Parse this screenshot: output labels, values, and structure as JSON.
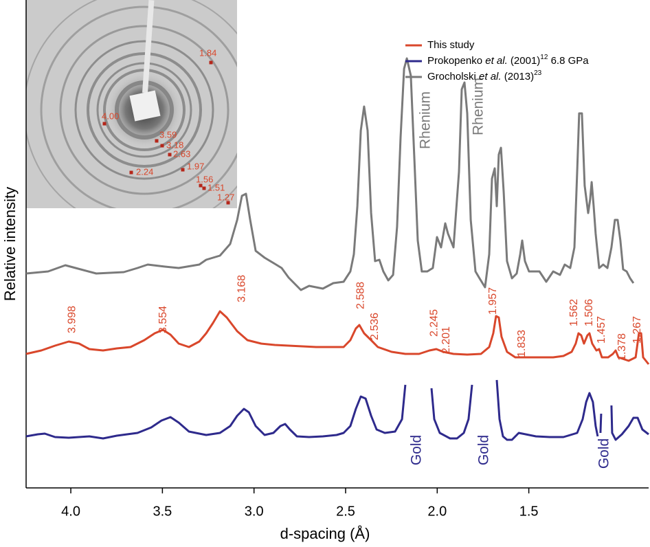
{
  "chart_data": {
    "type": "line",
    "xlabel": "d-spacing (Å)",
    "ylabel": "Relative intensity",
    "xlim": [
      4.244,
      0.846
    ],
    "ylim": [
      0,
      710
    ],
    "xticks": [
      {
        "value": 4,
        "label": "4.0"
      },
      3.5,
      {
        "value": 3,
        "label": "3.0"
      },
      2.5,
      {
        "value": 2,
        "label": "2.0"
      },
      1.5
    ],
    "legend": "upper right",
    "series": [
      {
        "name": [
          {
            "text": "This study"
          }
        ],
        "color": "#d9472b",
        "x": [
          4.244,
          4.161,
          4.086,
          4.011,
          3.955,
          3.899,
          3.824,
          3.749,
          3.674,
          3.599,
          3.542,
          3.497,
          3.456,
          3.411,
          3.355,
          3.299,
          3.261,
          3.224,
          3.186,
          3.149,
          3.092,
          3.036,
          2.961,
          2.886,
          2.811,
          2.736,
          2.661,
          2.586,
          2.511,
          2.474,
          2.444,
          2.425,
          2.399,
          2.361,
          2.324,
          2.249,
          2.174,
          2.099,
          2.042,
          2.005,
          1.967,
          1.911,
          1.836,
          1.761,
          1.716,
          1.694,
          1.679,
          1.664,
          1.649,
          1.619,
          1.574,
          1.499,
          1.424,
          1.367,
          1.311,
          1.266,
          1.244,
          1.229,
          1.214,
          1.199,
          1.18,
          1.169,
          1.154,
          1.131,
          1.116,
          1.101,
          1.067,
          1.041,
          1.026,
          1.011,
          0.955,
          0.917,
          0.899,
          0.887,
          0.876,
          0.846
        ],
        "values": [
          195,
          200,
          207,
          213,
          210,
          202,
          200,
          203,
          205,
          215,
          225,
          230,
          223,
          210,
          205,
          213,
          225,
          240,
          257,
          248,
          228,
          215,
          210,
          208,
          207,
          206,
          205,
          205,
          205,
          215,
          232,
          237,
          225,
          215,
          205,
          198,
          195,
          195,
          200,
          202,
          198,
          195,
          194,
          195,
          205,
          225,
          250,
          248,
          220,
          198,
          190,
          190,
          190,
          190,
          192,
          198,
          210,
          225,
          222,
          210,
          222,
          225,
          210,
          200,
          202,
          190,
          190,
          195,
          200,
          190,
          185,
          190,
          225,
          225,
          190,
          180
        ]
      },
      {
        "name": [
          {
            "text": "Prokopenko "
          },
          {
            "text": "et al.",
            "style": "italic"
          },
          {
            "text": " (2001)"
          },
          {
            "text": "12",
            "style": "super"
          },
          {
            "text": " 6.8 GPa"
          }
        ],
        "color": "#2e2a8c",
        "x": [
          4.244,
          4.18,
          4.142,
          4.086,
          4.011,
          3.899,
          3.824,
          3.749,
          3.636,
          3.561,
          3.505,
          3.456,
          3.411,
          3.355,
          3.261,
          3.186,
          3.13,
          3.092,
          3.055,
          3.028,
          2.991,
          2.942,
          2.894,
          2.856,
          2.83,
          2.804,
          2.766,
          2.699,
          2.624,
          2.549,
          2.511,
          2.474,
          2.444,
          2.417,
          2.391,
          2.361,
          2.331,
          2.286,
          2.23,
          2.192,
          2.174,
          null,
          2.031,
          2.016,
          1.986,
          1.93,
          1.892,
          1.855,
          1.829,
          1.81,
          null,
          1.675,
          1.66,
          1.641,
          1.619,
          1.592,
          1.555,
          1.517,
          1.461,
          1.386,
          1.311,
          1.236,
          1.206,
          1.187,
          1.169,
          1.15,
          1.135,
          1.124,
          null,
          1.109,
          1.105,
          null,
          1.049,
          1.045,
          1.026,
          0.992,
          0.955,
          0.929,
          0.906,
          0.88,
          0.846
        ],
        "values": [
          75,
          78,
          79,
          74,
          73,
          75,
          72,
          76,
          80,
          88,
          98,
          103,
          95,
          82,
          77,
          80,
          90,
          105,
          115,
          110,
          90,
          77,
          80,
          90,
          93,
          85,
          75,
          74,
          75,
          77,
          80,
          90,
          115,
          133,
          130,
          105,
          85,
          80,
          82,
          100,
          150,
          null,
          145,
          100,
          80,
          72,
          72,
          80,
          100,
          150,
          null,
          157,
          100,
          75,
          70,
          70,
          80,
          78,
          75,
          74,
          74,
          80,
          100,
          125,
          138,
          125,
          90,
          75,
          null,
          80,
          108,
          null,
          120,
          80,
          70,
          78,
          90,
          102,
          102,
          85,
          78
        ]
      },
      {
        "name": [
          {
            "text": "Grocholski "
          },
          {
            "text": "et al.",
            "style": "italic"
          },
          {
            "text": " (2013)"
          },
          {
            "text": "23",
            "style": "super"
          }
        ],
        "color": "#7a7a7a",
        "x": [
          4.244,
          4.124,
          4.03,
          3.974,
          3.861,
          3.711,
          3.636,
          3.58,
          3.486,
          3.411,
          3.299,
          3.261,
          3.186,
          3.13,
          3.092,
          3.066,
          3.044,
          3.021,
          2.991,
          2.942,
          2.886,
          2.849,
          2.811,
          2.744,
          2.699,
          2.624,
          2.567,
          2.511,
          2.474,
          2.455,
          2.436,
          2.417,
          2.399,
          2.38,
          2.361,
          2.339,
          2.316,
          2.294,
          2.267,
          2.241,
          2.219,
          2.2,
          2.181,
          2.166,
          2.144,
          2.125,
          2.106,
          2.084,
          2.054,
          2.024,
          2.001,
          1.979,
          1.956,
          1.941,
          1.911,
          1.881,
          1.866,
          1.851,
          1.836,
          1.817,
          1.791,
          1.769,
          1.739,
          1.716,
          1.701,
          1.686,
          1.675,
          1.664,
          1.652,
          1.637,
          1.619,
          1.592,
          1.566,
          1.547,
          1.536,
          1.521,
          1.499,
          1.442,
          1.405,
          1.367,
          1.33,
          1.304,
          1.274,
          1.251,
          1.236,
          1.225,
          1.21,
          1.195,
          1.176,
          1.165,
          1.157,
          1.146,
          1.135,
          1.116,
          1.094,
          1.071,
          1.049,
          1.03,
          1.015,
          1.0,
          0.985,
          0.966,
          0.947,
          0.929
        ],
        "values": [
          312,
          315,
          324,
          320,
          312,
          314,
          320,
          325,
          322,
          320,
          325,
          332,
          338,
          355,
          390,
          425,
          428,
          390,
          345,
          335,
          326,
          320,
          306,
          288,
          294,
          290,
          298,
          300,
          315,
          340,
          410,
          520,
          555,
          520,
          400,
          330,
          332,
          315,
          302,
          310,
          380,
          510,
          610,
          625,
          600,
          480,
          360,
          315,
          315,
          320,
          365,
          350,
          385,
          370,
          350,
          460,
          580,
          590,
          545,
          390,
          315,
          305,
          292,
          340,
          450,
          465,
          410,
          485,
          495,
          430,
          330,
          305,
          312,
          340,
          360,
          330,
          315,
          315,
          300,
          315,
          310,
          325,
          320,
          350,
          460,
          545,
          545,
          440,
          400,
          420,
          445,
          410,
          370,
          320,
          325,
          320,
          350,
          390,
          390,
          360,
          318,
          315,
          305,
          298
        ]
      }
    ],
    "peak_labels": [
      {
        "text": "3.998",
        "x": 3.992,
        "y": 225
      },
      {
        "text": "3.554",
        "x": 3.494,
        "y": 225
      },
      {
        "text": "3.168",
        "x": 3.066,
        "y": 270
      },
      {
        "text": "2.588",
        "x": 2.417,
        "y": 260
      },
      {
        "text": "2.536",
        "x": 2.339,
        "y": 215
      },
      {
        "text": "2.245",
        "x": 2.016,
        "y": 220
      },
      {
        "text": "2.201",
        "x": 1.949,
        "y": 195
      },
      {
        "text": "1.957",
        "x": 1.694,
        "y": 252
      },
      {
        "text": "1.833",
        "x": 1.536,
        "y": 190
      },
      {
        "text": "1.562",
        "x": 1.251,
        "y": 235
      },
      {
        "text": "1.506",
        "x": 1.169,
        "y": 235
      },
      {
        "text": "1.457",
        "x": 1.101,
        "y": 210
      },
      {
        "text": "1.378",
        "x": 0.989,
        "y": 185
      },
      {
        "text": "1.267",
        "x": 0.906,
        "y": 210
      }
    ],
    "peak_label_color": "#d9472b",
    "annotations": [
      {
        "text": "Rhenium",
        "x": 2.061,
        "y": 535,
        "color": "#7a7a7a"
      },
      {
        "text": "Rhenium",
        "x": 1.772,
        "y": 555,
        "color": "#7a7a7a"
      },
      {
        "text": "Gold",
        "x": 2.11,
        "y": 55,
        "color": "#2e2a8c"
      },
      {
        "text": "Gold",
        "x": 1.742,
        "y": 55,
        "color": "#2e2a8c"
      },
      {
        "text": "Gold",
        "x": 1.086,
        "y": 50,
        "color": "#2e2a8c"
      }
    ],
    "inset": {
      "labels": [
        "1.84",
        "4.00",
        "3.59",
        "3.18",
        "2.63",
        "2.24",
        "1.97",
        "1.56",
        "1.51",
        "1.27"
      ],
      "color": "#d9472b"
    }
  }
}
